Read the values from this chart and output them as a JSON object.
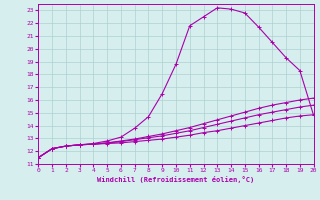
{
  "xlabel": "Windchill (Refroidissement éolien,°C)",
  "xlim": [
    0,
    20
  ],
  "ylim": [
    11,
    23.5
  ],
  "xticks": [
    0,
    1,
    2,
    3,
    4,
    5,
    6,
    7,
    8,
    9,
    10,
    11,
    12,
    13,
    14,
    15,
    16,
    17,
    18,
    19,
    20
  ],
  "yticks": [
    11,
    12,
    13,
    14,
    15,
    16,
    17,
    18,
    19,
    20,
    21,
    22,
    23
  ],
  "bg_color": "#d6eeee",
  "grid_color": "#aed0d0",
  "line_color": "#aa00aa",
  "line1_x": [
    0,
    1,
    2,
    3,
    4,
    5,
    6,
    7,
    8,
    9,
    10,
    11,
    12,
    13,
    14,
    15,
    16,
    17,
    18,
    19,
    20
  ],
  "line1_y": [
    11.5,
    12.2,
    12.4,
    12.5,
    12.55,
    12.6,
    12.65,
    12.75,
    12.85,
    12.95,
    13.1,
    13.25,
    13.45,
    13.6,
    13.8,
    14.0,
    14.2,
    14.4,
    14.6,
    14.75,
    14.85
  ],
  "line2_x": [
    0,
    1,
    2,
    3,
    4,
    5,
    6,
    7,
    8,
    9,
    10,
    11,
    12,
    13,
    14,
    15,
    16,
    17,
    18,
    19,
    20
  ],
  "line2_y": [
    11.5,
    12.2,
    12.4,
    12.5,
    12.55,
    12.65,
    12.75,
    12.9,
    13.05,
    13.2,
    13.4,
    13.6,
    13.85,
    14.1,
    14.35,
    14.6,
    14.85,
    15.05,
    15.25,
    15.45,
    15.6
  ],
  "line3_x": [
    0,
    1,
    2,
    3,
    4,
    5,
    6,
    7,
    8,
    9,
    10,
    11,
    12,
    13,
    14,
    15,
    16,
    17,
    18,
    19,
    20
  ],
  "line3_y": [
    11.5,
    12.2,
    12.4,
    12.5,
    12.55,
    12.65,
    12.8,
    12.95,
    13.15,
    13.35,
    13.6,
    13.85,
    14.15,
    14.45,
    14.75,
    15.05,
    15.35,
    15.6,
    15.8,
    16.0,
    16.15
  ],
  "line4_x": [
    0,
    1,
    2,
    3,
    4,
    5,
    6,
    7,
    8,
    9,
    10,
    11,
    12,
    13,
    14,
    15,
    16,
    17,
    18,
    19,
    20
  ],
  "line4_y": [
    11.5,
    12.2,
    12.4,
    12.5,
    12.6,
    12.8,
    13.1,
    13.8,
    14.7,
    16.5,
    18.8,
    21.8,
    22.5,
    23.2,
    23.1,
    22.8,
    21.7,
    20.5,
    19.3,
    18.3,
    14.8
  ],
  "marker_size": 2.5,
  "line_width": 0.8
}
